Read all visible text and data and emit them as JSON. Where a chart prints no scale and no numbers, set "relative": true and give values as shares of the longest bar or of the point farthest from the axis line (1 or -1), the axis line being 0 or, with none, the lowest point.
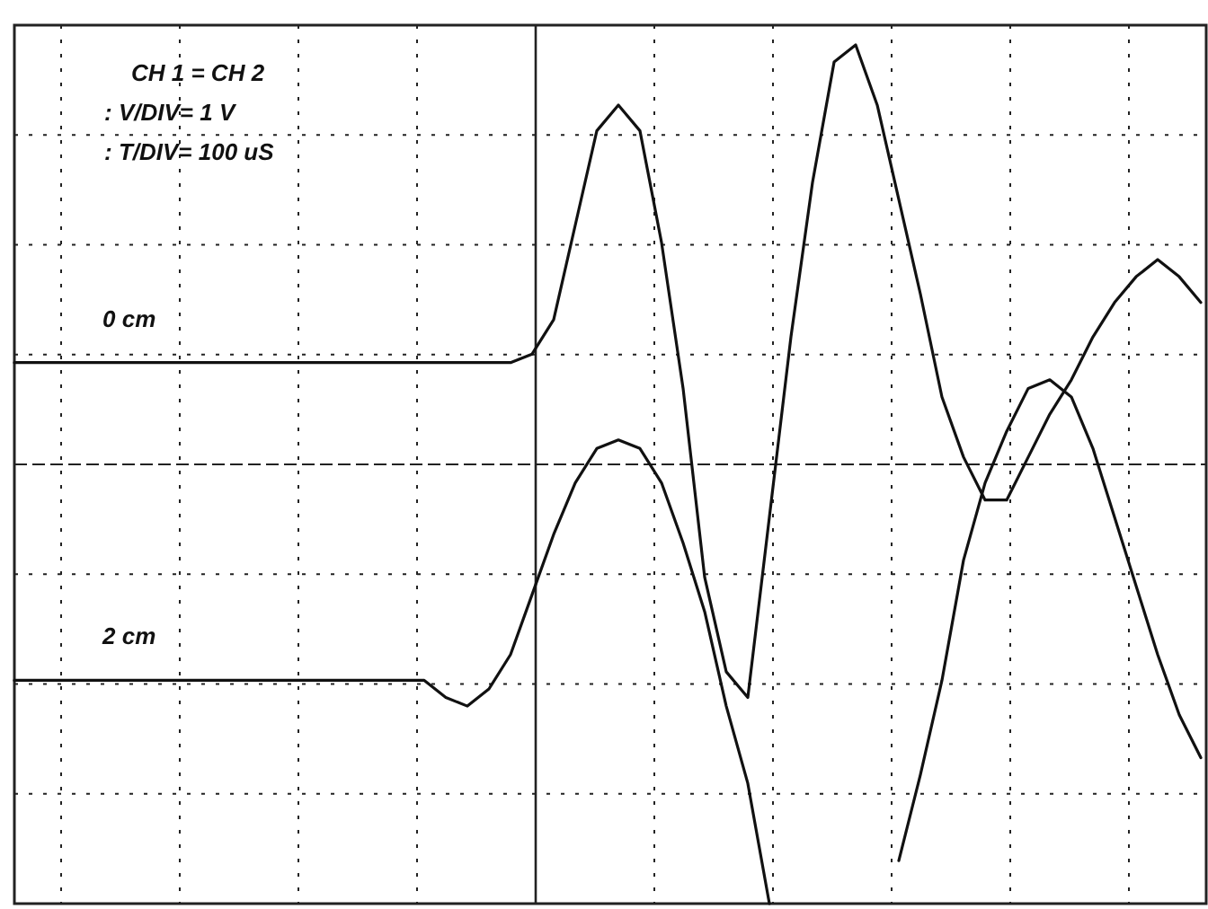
{
  "chart_data": {
    "type": "line",
    "relative": true,
    "grid": true,
    "annotations": [
      "CH 1 = CH 2",
      ": V/DIV= 1 V",
      ": T/DIV= 100 uS"
    ],
    "categories": [
      null,
      null,
      null,
      null,
      null,
      null,
      null,
      null,
      null,
      null,
      null,
      null,
      null,
      null,
      null,
      null,
      null,
      null,
      null,
      null,
      null,
      null,
      null,
      null,
      null,
      null,
      null,
      null,
      null,
      null,
      null,
      null,
      null,
      null,
      null,
      null,
      null,
      null,
      null,
      null,
      null,
      null,
      null,
      null,
      null,
      null,
      null,
      null,
      null,
      null,
      null,
      null,
      null,
      null,
      null,
      null
    ],
    "series": [
      {
        "name": "0 cm",
        "color": "#111111",
        "values": [
          0.63,
          0.63,
          0.63,
          0.63,
          0.63,
          0.63,
          0.63,
          0.63,
          0.63,
          0.63,
          0.63,
          0.63,
          0.63,
          0.63,
          0.63,
          0.63,
          0.63,
          0.63,
          0.63,
          0.63,
          0.63,
          0.63,
          0.63,
          0.63,
          0.64,
          0.68,
          0.79,
          0.9,
          0.93,
          0.9,
          0.77,
          0.6,
          0.38,
          0.27,
          0.24,
          0.45,
          0.66,
          0.84,
          0.98,
          1,
          0.93,
          0.82,
          0.71,
          0.59,
          0.52,
          0.47,
          0.47,
          0.52,
          0.57,
          0.61,
          0.66,
          0.7,
          0.73,
          0.75,
          0.73,
          0.7
        ]
      },
      {
        "name": "2 cm",
        "color": "#111111",
        "values": [
          0.26,
          0.26,
          0.26,
          0.26,
          0.26,
          0.26,
          0.26,
          0.26,
          0.26,
          0.26,
          0.26,
          0.26,
          0.26,
          0.26,
          0.26,
          0.26,
          0.26,
          0.26,
          0.26,
          0.26,
          0.24,
          0.23,
          0.25,
          0.29,
          0.36,
          0.43,
          0.49,
          0.53,
          0.54,
          0.53,
          0.49,
          0.42,
          0.34,
          0.23,
          0.14,
          0,
          null,
          null,
          null,
          null,
          null,
          0.05,
          0.15,
          0.26,
          0.4,
          0.49,
          0.55,
          0.6,
          0.61,
          0.59,
          0.53,
          0.45,
          0.37,
          0.29,
          0.22,
          0.17
        ]
      }
    ]
  }
}
